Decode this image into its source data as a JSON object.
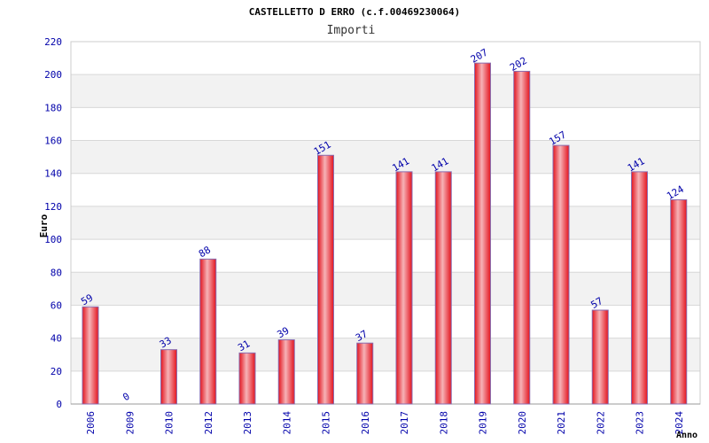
{
  "chart_data": {
    "type": "bar",
    "title": "CASTELLETTO D ERRO (c.f.00469230064)",
    "subtitle": "Importi",
    "ylabel": "Euro",
    "xlabel": "Anno",
    "ylim": [
      0,
      220
    ],
    "yticks": [
      0,
      20,
      40,
      60,
      80,
      100,
      120,
      140,
      160,
      180,
      200,
      220
    ],
    "grid": true,
    "categories": [
      "2006",
      "2009",
      "2010",
      "2012",
      "2013",
      "2014",
      "2015",
      "2016",
      "2017",
      "2018",
      "2019",
      "2020",
      "2021",
      "2022",
      "2023",
      "2024"
    ],
    "values": [
      59,
      0,
      33,
      88,
      31,
      39,
      151,
      37,
      141,
      141,
      207,
      202,
      157,
      57,
      141,
      124
    ],
    "colors": {
      "bar_edge": "#e3141e",
      "bar_center": "#f6b3b7",
      "bar_outline": "#8a6db0",
      "axis_text": "#0000aa",
      "band": "#f2f2f2",
      "grid": "#d8d8d8"
    }
  }
}
